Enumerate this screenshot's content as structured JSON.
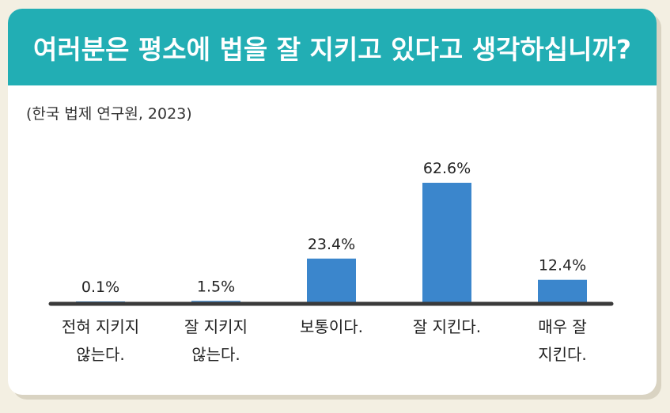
{
  "header": {
    "title": "여러분은 평소에 법을 잘 지키고 있다고 생각하십니까?"
  },
  "source": "(한국 법제 연구원, 2023)",
  "colors": {
    "bar": "#3b86cc",
    "header": "#22aeb4",
    "axis": "#3a3a3a"
  },
  "chart_data": {
    "type": "bar",
    "title": "여러분은 평소에 법을 잘 지키고 있다고 생각하십니까?",
    "categories": [
      [
        "전혀 지키지",
        "않는다."
      ],
      [
        "잘 지키지",
        "않는다."
      ],
      [
        "보통이다."
      ],
      [
        "잘 지킨다."
      ],
      [
        "매우 잘",
        "지킨다."
      ]
    ],
    "values": [
      0.1,
      1.5,
      23.4,
      62.6,
      12.4
    ],
    "value_labels": [
      "0.1%",
      "1.5%",
      "23.4%",
      "62.6%",
      "12.4%"
    ],
    "ylim": [
      0,
      62.6
    ],
    "grid": false
  }
}
